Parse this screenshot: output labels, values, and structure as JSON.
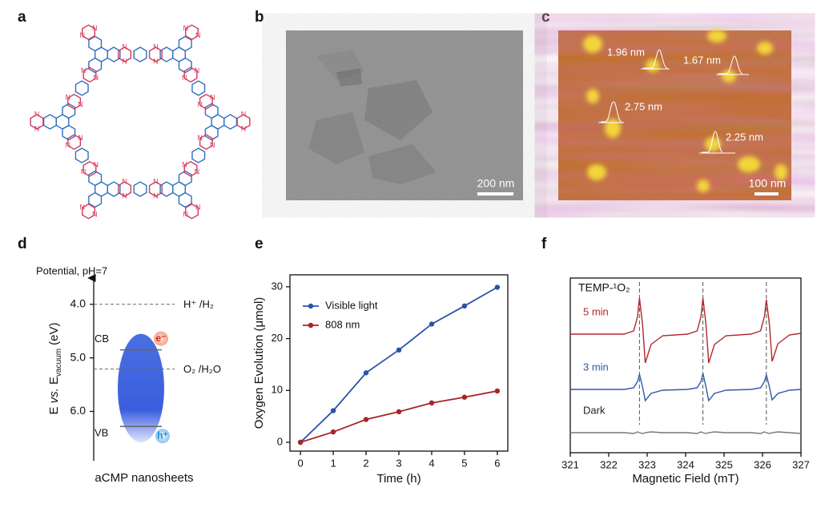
{
  "panel_labels": [
    "a",
    "b",
    "c",
    "d",
    "e",
    "f"
  ],
  "panel_a": {
    "atom_label": "N"
  },
  "panel_b": {
    "scale_bar": "200 nm"
  },
  "panel_c": {
    "height_labels": [
      "1.96 nm",
      "1.67 nm",
      "2.75 nm",
      "2.25 nm"
    ],
    "scale_bar": "100 nm"
  },
  "chart_data": [
    {
      "type": "energy_diagram",
      "axis_title": "Potential, pH=7",
      "y_label_parts": [
        "E ",
        "vs.",
        " E",
        "vacuum",
        " (eV)"
      ],
      "ylim": [
        3.48,
        6.92
      ],
      "inverted": true,
      "yticks": [
        {
          "value": 4,
          "label": "4.0"
        },
        {
          "value": 5,
          "label": "5.0"
        },
        {
          "value": 6,
          "label": "6.0"
        }
      ],
      "levels": [
        {
          "name": "H⁺ /H₂",
          "value": 4.0
        },
        {
          "name": "O₂ /H₂O",
          "value": 5.21
        }
      ],
      "bands": [
        {
          "name": "CB",
          "value": 4.85
        },
        {
          "name": "VB",
          "value": 6.28
        }
      ],
      "carriers": [
        "e⁻",
        "h⁺"
      ],
      "caption": "aCMP nanosheets"
    },
    {
      "type": "line",
      "x": [
        0,
        1,
        2,
        3,
        4,
        5,
        6
      ],
      "series": [
        {
          "name": "Visible light",
          "color": "#2b52a8",
          "values": [
            0,
            6.1,
            13.4,
            17.8,
            22.8,
            26.3,
            29.9
          ]
        },
        {
          "name": "808 nm",
          "color": "#a82428",
          "values": [
            0,
            2.0,
            4.4,
            5.9,
            7.6,
            8.7,
            9.9
          ]
        }
      ],
      "xlim": [
        -0.32,
        6.32
      ],
      "ylim": [
        -1.7,
        32.3
      ],
      "xticks": [
        0,
        1,
        2,
        3,
        4,
        5,
        6
      ],
      "yticks": [
        0,
        10,
        20,
        30
      ],
      "xlabel": "Time (h)",
      "ylabel": "Oxygen Evolution (μmol)",
      "legend": "upper left",
      "markers": true
    },
    {
      "type": "spectrum",
      "x": [
        321,
        322.4,
        322.65,
        322.75,
        322.8,
        322.88,
        322.95,
        323.1,
        323.4,
        324.05,
        324.3,
        324.4,
        324.45,
        324.53,
        324.6,
        324.75,
        325.05,
        325.7,
        325.95,
        326.05,
        326.1,
        326.18,
        326.25,
        326.4,
        326.7,
        327
      ],
      "series": [
        {
          "name": "5 min",
          "color": "#b0282c",
          "values": [
            14.8,
            14.8,
            15.2,
            17,
            19.3,
            16,
            11.2,
            13.5,
            14.6,
            14.8,
            15.2,
            17,
            19.3,
            16,
            11.2,
            13.5,
            14.6,
            14.8,
            15.2,
            17,
            19.1,
            16,
            11.4,
            13.6,
            14.7,
            14.9
          ]
        },
        {
          "name": "3 min",
          "color": "#2d5aa8",
          "values": [
            7.9,
            7.9,
            8.1,
            8.9,
            9.8,
            8.2,
            6.5,
            7.4,
            7.8,
            7.9,
            8.1,
            8.9,
            9.9,
            8.2,
            6.5,
            7.4,
            7.8,
            7.9,
            8.1,
            8.9,
            9.7,
            8.2,
            6.6,
            7.4,
            7.8,
            7.9
          ]
        },
        {
          "name": "Dark",
          "color": "#777777",
          "values": [
            2.5,
            2.5,
            2.4,
            2.6,
            2.5,
            2.4,
            2.5,
            2.6,
            2.5,
            2.5,
            2.4,
            2.6,
            2.5,
            2.4,
            2.5,
            2.6,
            2.5,
            2.5,
            2.4,
            2.6,
            2.5,
            2.4,
            2.5,
            2.6,
            2.5,
            2.4
          ]
        }
      ],
      "xlim": [
        321,
        327
      ],
      "ylim": [
        0,
        21.8
      ],
      "xticks": [
        321,
        322,
        323,
        324,
        325,
        326,
        327
      ],
      "xlabel": "Magnetic Field (mT)",
      "annotation": "TEMP-¹O₂",
      "reference_lines": [
        322.8,
        324.45,
        326.1
      ]
    }
  ]
}
